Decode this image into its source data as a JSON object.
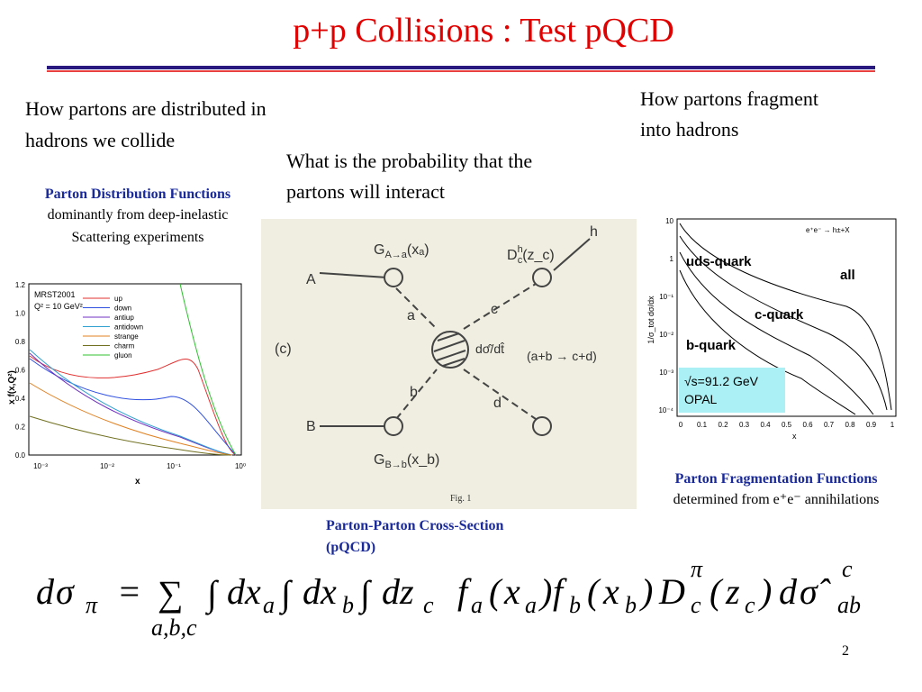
{
  "header": {
    "title": "p+p Collisions : Test pQCD"
  },
  "left": {
    "text": [
      "How partons are distributed in",
      "hadrons we collide"
    ],
    "caption_title": "Parton Distribution Functions",
    "caption": [
      "dominantly from deep-inelastic",
      "Scattering experiments"
    ],
    "plot": {
      "set": "MRST2001",
      "scale": "Q² = 10 GeV²",
      "legend": [
        "up",
        "down",
        "antiup",
        "antidown",
        "strange",
        "charm",
        "gluon"
      ],
      "yticks": [
        "0.0",
        "0.2",
        "0.4",
        "0.6",
        "0.8",
        "1.0",
        "1.2"
      ],
      "xticks": [
        "10⁻³",
        "10⁻²",
        "10⁻¹",
        "10⁰"
      ],
      "xlabel": "x",
      "ylabel": "x f(x,Q²)"
    }
  },
  "middle": {
    "text": [
      "What is the probability that the",
      "partons will interact"
    ],
    "diagram": {
      "panel": "(c)",
      "A": "A",
      "B": "B",
      "a": "a",
      "b": "b",
      "c": "c",
      "d": "d",
      "h": "h",
      "GA": "G",
      "GAsub": "A→a",
      "GAarg": "(xₐ)",
      "GB": "G",
      "GBsub": "B→b",
      "GBarg": "(x_b)",
      "D": "D",
      "Dsub": "c",
      "Dsup": "h",
      "Darg": "(z_c)",
      "sigma": "dσ̂/dt̂",
      "process": "(a+b → c+d)",
      "fig": "Fig. 1"
    },
    "caption": [
      "Parton-Parton Cross-Section",
      "(pQCD)"
    ]
  },
  "right": {
    "text": [
      "How partons fragment",
      "into hadrons"
    ],
    "plot": {
      "process": "e⁺e⁻ → h±+X",
      "uds": "uds-quark",
      "all": "all",
      "c": "c-quark",
      "b": "b-quark",
      "energy": "√s=91.2 GeV",
      "exp": "OPAL",
      "xticks": [
        "0",
        "0.1",
        "0.2",
        "0.3",
        "0.4",
        "0.5",
        "0.6",
        "0.7",
        "0.8",
        "0.9",
        "1"
      ],
      "yticks": [
        "10",
        "1",
        "10⁻¹",
        "10⁻²",
        "10⁻³",
        "10⁻⁴"
      ],
      "xlabel": "x",
      "ylabel": "1/σ_tot dσ/dx"
    },
    "caption_title": "Parton Fragmentation Functions",
    "caption": "determined from e⁺e⁻ annihilations"
  },
  "formula": {
    "tokens": [
      "d",
      "σ",
      "π",
      "=",
      "∑",
      "a,b,c",
      "∫",
      "dx",
      "a",
      "∫",
      "dx",
      "b",
      "∫",
      "dz",
      "c",
      "f",
      "a",
      "(",
      "x",
      "a",
      ")",
      "f",
      "b",
      "(",
      "x",
      "b",
      ")",
      "D",
      "c",
      "π",
      "(",
      "z",
      "c",
      ")",
      "d",
      "σ̂",
      "c",
      "ab"
    ]
  },
  "footer": {
    "page": "2"
  }
}
